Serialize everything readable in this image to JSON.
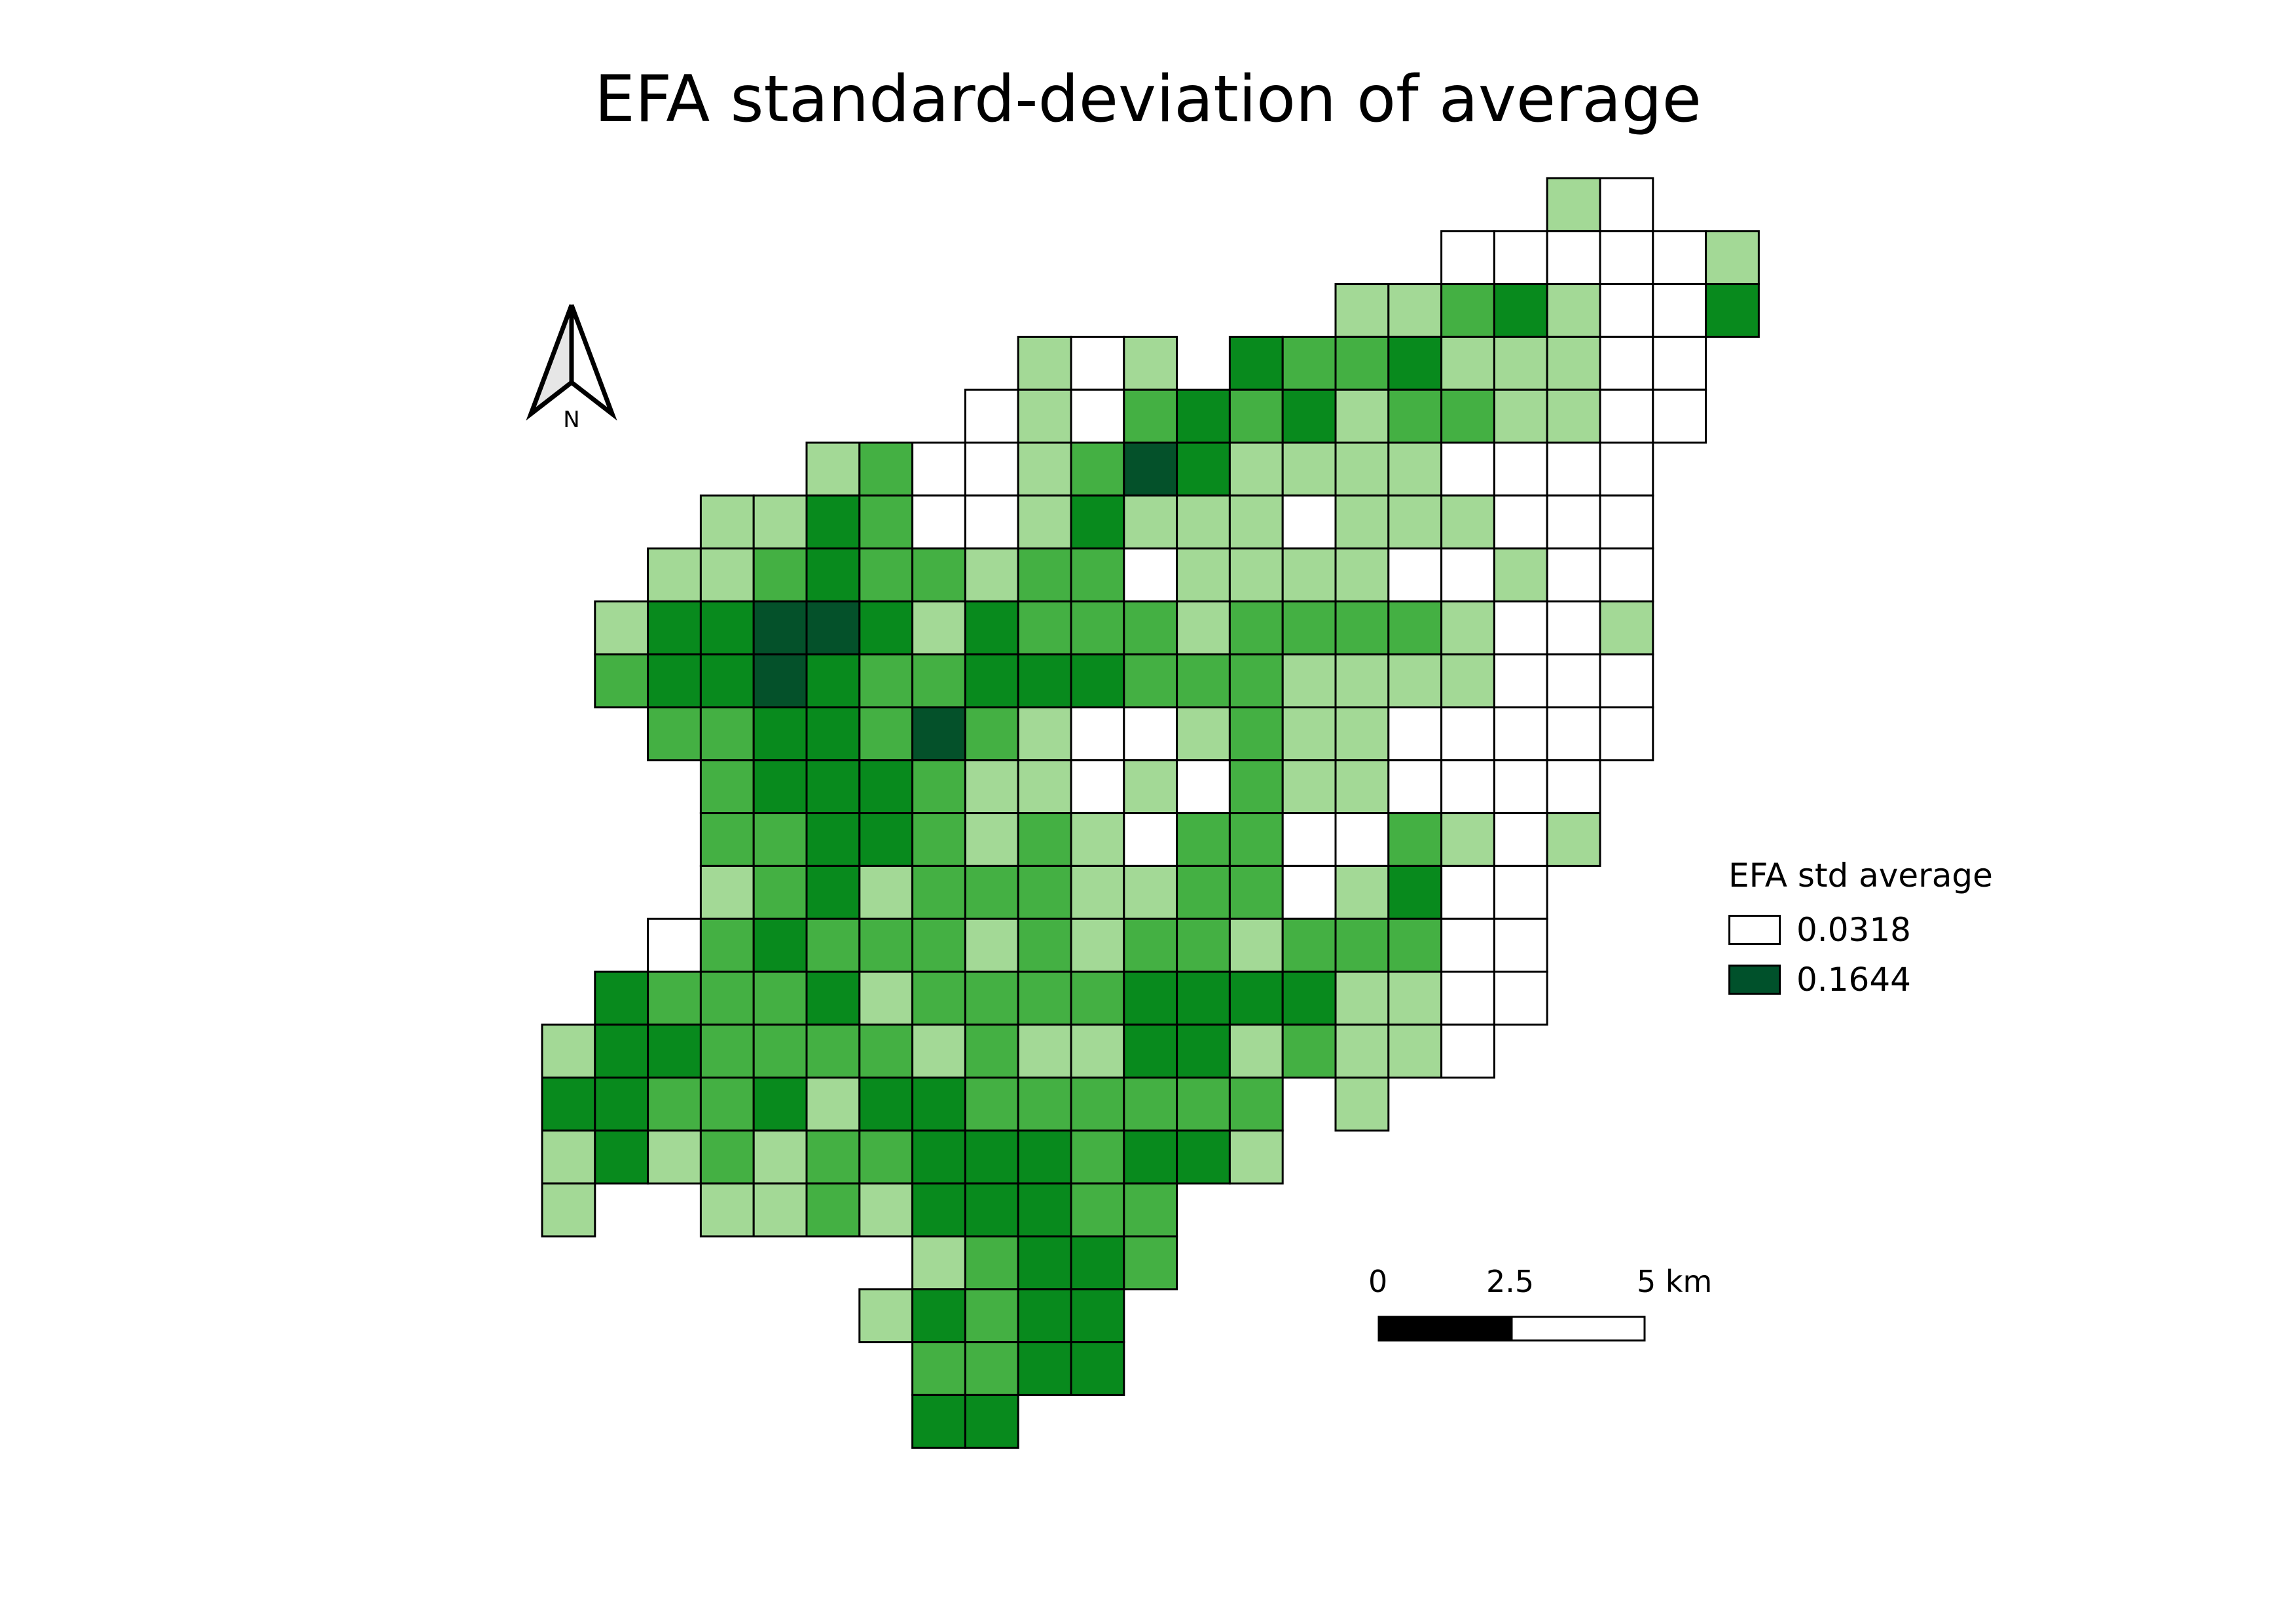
{
  "title": "EFA standard-deviation of average",
  "north_arrow": {
    "label": "N",
    "icon": "north-arrow-icon"
  },
  "legend": {
    "title": "EFA std average",
    "items": [
      {
        "label": "0.0318",
        "color": "#ffffff"
      },
      {
        "label": "0.1644",
        "color": "#00512b"
      }
    ]
  },
  "scale_bar": {
    "ticks": [
      "0",
      "2.5",
      "5 km"
    ]
  },
  "class_colors": [
    "#ffffff",
    "#a3d996",
    "#44b043",
    "#088a1d",
    "#04512a"
  ],
  "grid": {
    "start_row": 0,
    "rows": [
      {
        "c0": 19,
        "v": [
          1,
          0
        ]
      },
      {
        "c0": 17,
        "v": [
          0,
          0,
          0,
          0,
          0,
          1
        ]
      },
      {
        "c0": 15,
        "v": [
          1,
          1,
          2,
          3,
          1,
          0,
          0,
          3
        ]
      },
      {
        "c0": 9,
        "v": [
          1,
          0,
          1,
          -1,
          3,
          2,
          2,
          3,
          1,
          1,
          1,
          0,
          0
        ]
      },
      {
        "c0": 8,
        "v": [
          0,
          1,
          0,
          2,
          3,
          2,
          3,
          1,
          2,
          2,
          1,
          1,
          0,
          0
        ]
      },
      {
        "c0": 5,
        "v": [
          1,
          2,
          0,
          0,
          1,
          2,
          4,
          3,
          1,
          1,
          1,
          1,
          0,
          0,
          0,
          0
        ]
      },
      {
        "c0": 3,
        "v": [
          1,
          1,
          3,
          2,
          0,
          0,
          1,
          3,
          1,
          1,
          1,
          0,
          1,
          1,
          1,
          0,
          0,
          0
        ]
      },
      {
        "c0": 2,
        "v": [
          1,
          1,
          2,
          3,
          2,
          2,
          1,
          2,
          2,
          0,
          1,
          1,
          1,
          1,
          0,
          0,
          1,
          0,
          0
        ]
      },
      {
        "c0": 1,
        "v": [
          1,
          3,
          3,
          4,
          4,
          3,
          1,
          3,
          2,
          2,
          2,
          1,
          2,
          2,
          2,
          2,
          1,
          0,
          0,
          1
        ]
      },
      {
        "c0": 1,
        "v": [
          2,
          3,
          3,
          4,
          3,
          2,
          2,
          3,
          3,
          3,
          2,
          2,
          2,
          1,
          1,
          1,
          1,
          0,
          0,
          0
        ]
      },
      {
        "c0": 2,
        "v": [
          2,
          2,
          3,
          3,
          2,
          4,
          2,
          1,
          0,
          0,
          1,
          2,
          1,
          1,
          0,
          0,
          0,
          0,
          0
        ]
      },
      {
        "c0": 3,
        "v": [
          2,
          3,
          3,
          3,
          2,
          1,
          1,
          0,
          1,
          0,
          2,
          1,
          1,
          0,
          0,
          0,
          0
        ]
      },
      {
        "c0": 3,
        "v": [
          2,
          2,
          3,
          3,
          2,
          1,
          2,
          1,
          0,
          2,
          2,
          0,
          0,
          2,
          1,
          0,
          1
        ]
      },
      {
        "c0": 3,
        "v": [
          1,
          2,
          3,
          1,
          2,
          2,
          2,
          1,
          1,
          2,
          2,
          0,
          1,
          3,
          0,
          0
        ]
      },
      {
        "c0": 2,
        "v": [
          0,
          2,
          3,
          2,
          2,
          2,
          1,
          2,
          1,
          2,
          2,
          1,
          2,
          2,
          2,
          0,
          0
        ]
      },
      {
        "c0": 1,
        "v": [
          3,
          2,
          2,
          2,
          3,
          1,
          2,
          2,
          2,
          2,
          3,
          3,
          3,
          3,
          1,
          1,
          0,
          0
        ]
      },
      {
        "c0": 0,
        "v": [
          1,
          3,
          3,
          2,
          2,
          2,
          2,
          1,
          2,
          1,
          1,
          3,
          3,
          1,
          2,
          1,
          1,
          0
        ]
      },
      {
        "c0": 0,
        "v": [
          3,
          3,
          2,
          2,
          3,
          1,
          3,
          3,
          2,
          2,
          2,
          2,
          2,
          2,
          -1,
          1
        ]
      },
      {
        "c0": 0,
        "v": [
          1,
          3,
          1,
          2,
          1,
          2,
          2,
          3,
          3,
          3,
          2,
          3,
          3,
          1
        ]
      },
      {
        "c0": 0,
        "v": [
          1,
          -1,
          -1,
          1,
          1,
          2,
          1,
          3,
          3,
          3,
          2,
          2
        ]
      },
      {
        "c0": 7,
        "v": [
          1,
          2,
          3,
          3,
          2
        ]
      },
      {
        "c0": 6,
        "v": [
          1,
          3,
          2,
          3,
          3
        ]
      },
      {
        "c0": 7,
        "v": [
          2,
          2,
          3,
          3
        ]
      },
      {
        "c0": 7,
        "v": [
          3,
          3
        ]
      }
    ]
  }
}
